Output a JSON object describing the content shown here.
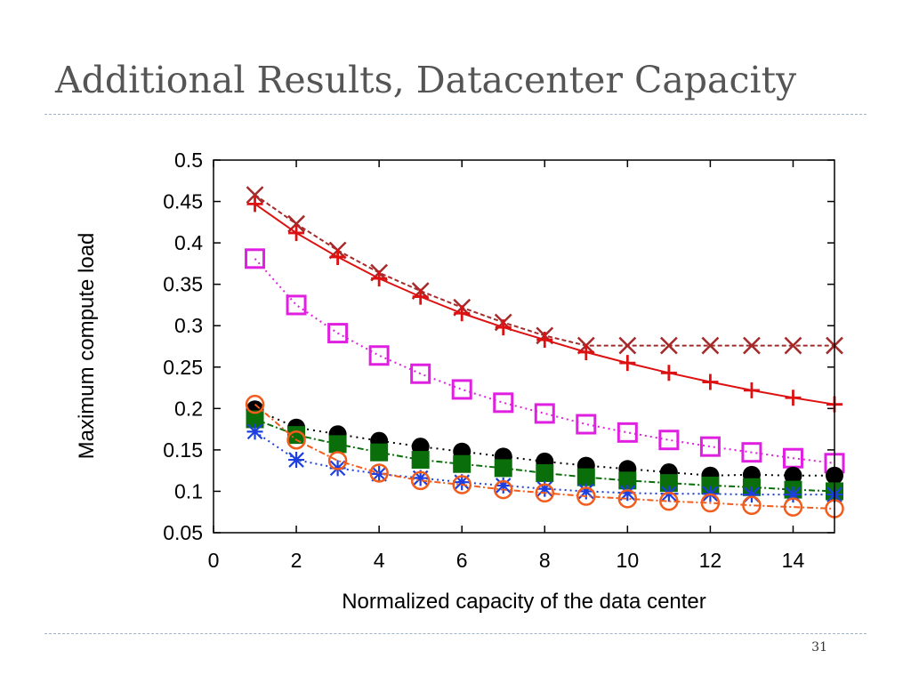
{
  "slide": {
    "title": "Additional Results, Datacenter Capacity",
    "page_number": "31"
  },
  "chart_data": {
    "type": "line",
    "xlabel": "Normalized capacity of the data center",
    "ylabel": "Maximum compute load",
    "xlim": [
      0,
      15
    ],
    "ylim": [
      0.05,
      0.5
    ],
    "xticks": [
      0,
      2,
      4,
      6,
      8,
      10,
      12,
      14
    ],
    "xtick_labels": [
      "0",
      "2",
      "4",
      "6",
      "8",
      "10",
      "12",
      "14"
    ],
    "yticks": [
      0.05,
      0.1,
      0.15,
      0.2,
      0.25,
      0.3,
      0.35,
      0.4,
      0.45,
      0.5
    ],
    "ytick_labels": [
      "0.05",
      "0.1",
      "0.15",
      "0.2",
      "0.25",
      "0.3",
      "0.35",
      "0.4",
      "0.45",
      "0.5"
    ],
    "grid": false,
    "legend": "none",
    "x": [
      1,
      2,
      3,
      4,
      5,
      6,
      7,
      8,
      9,
      10,
      11,
      12,
      13,
      14,
      15
    ],
    "series": [
      {
        "marker": "x",
        "color": "#a52a2a",
        "dash": "5,3",
        "values": [
          0.458,
          0.423,
          0.391,
          0.364,
          0.342,
          0.322,
          0.304,
          0.288,
          0.276,
          0.276,
          0.276,
          0.276,
          0.276,
          0.276,
          0.276
        ]
      },
      {
        "marker": "plus",
        "color": "#dd1111",
        "dash": "",
        "values": [
          0.447,
          0.412,
          0.383,
          0.357,
          0.335,
          0.315,
          0.298,
          0.283,
          0.268,
          0.255,
          0.243,
          0.232,
          0.222,
          0.213,
          0.205
        ]
      },
      {
        "marker": "open-square",
        "color": "#e020e0",
        "dash": "2,4",
        "values": [
          0.381,
          0.325,
          0.291,
          0.264,
          0.242,
          0.223,
          0.207,
          0.194,
          0.181,
          0.171,
          0.162,
          0.154,
          0.147,
          0.14,
          0.134
        ]
      },
      {
        "marker": "filled-circle",
        "color": "#000000",
        "dash": "2,5",
        "values": [
          0.199,
          0.177,
          0.169,
          0.161,
          0.154,
          0.148,
          0.142,
          0.136,
          0.131,
          0.127,
          0.123,
          0.119,
          0.12,
          0.119,
          0.119
        ]
      },
      {
        "marker": "filled-square",
        "color": "#0a6e0a",
        "dash": "7,3,2,3",
        "values": [
          0.187,
          0.168,
          0.157,
          0.147,
          0.138,
          0.133,
          0.128,
          0.122,
          0.117,
          0.113,
          0.11,
          0.107,
          0.105,
          0.102,
          0.1
        ]
      },
      {
        "marker": "asterisk",
        "color": "#1d3fe0",
        "dash": "2,4",
        "values": [
          0.172,
          0.138,
          0.128,
          0.121,
          0.116,
          0.111,
          0.107,
          0.103,
          0.1,
          0.098,
          0.097,
          0.097,
          0.096,
          0.096,
          0.096
        ]
      },
      {
        "marker": "open-circle",
        "color": "#f25c1c",
        "dash": "7,3,2,3",
        "values": [
          0.205,
          0.162,
          0.137,
          0.122,
          0.113,
          0.108,
          0.102,
          0.098,
          0.094,
          0.091,
          0.088,
          0.086,
          0.083,
          0.081,
          0.079
        ]
      }
    ]
  }
}
